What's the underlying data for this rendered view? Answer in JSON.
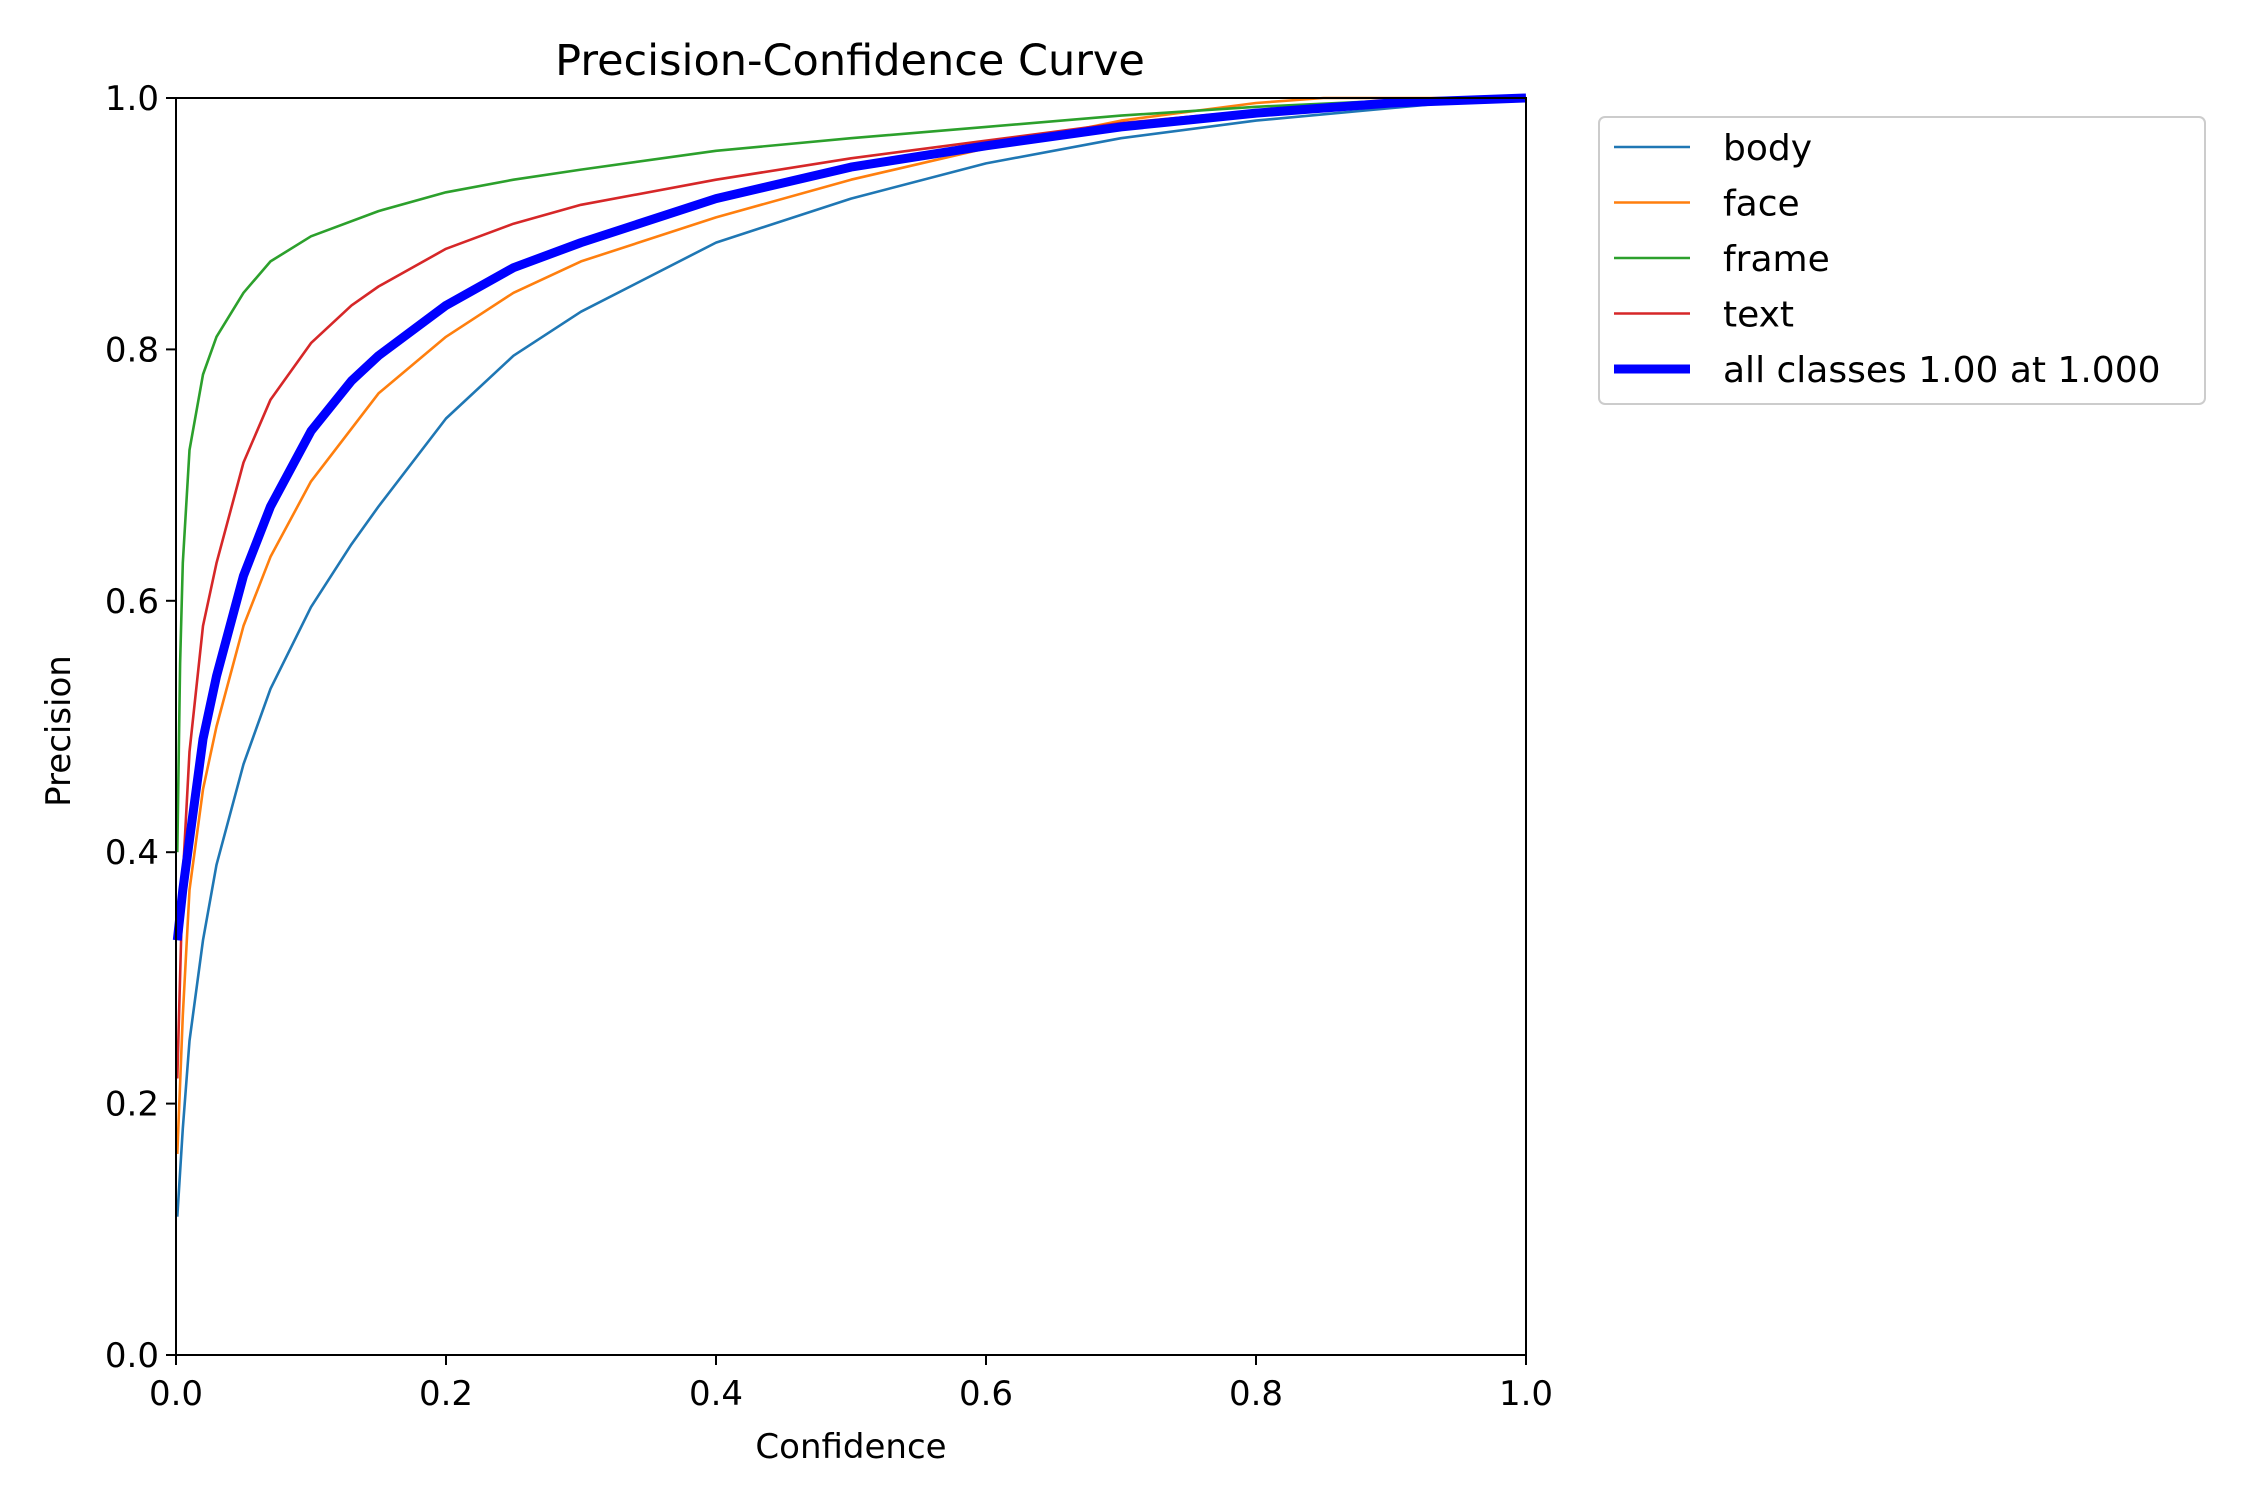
{
  "chart_data": {
    "type": "line",
    "title": "Precision-Confidence Curve",
    "xlabel": "Confidence",
    "ylabel": "Precision",
    "xlim": [
      0,
      1
    ],
    "ylim": [
      0,
      1
    ],
    "x_ticks": [
      "0.0",
      "0.2",
      "0.4",
      "0.6",
      "0.8",
      "1.0"
    ],
    "y_ticks": [
      "0.0",
      "0.2",
      "0.4",
      "0.6",
      "0.8",
      "1.0"
    ],
    "grid": false,
    "legend_position": "outside-top-right",
    "series": [
      {
        "name": "body",
        "color": "#1f77b4",
        "emphasis": false,
        "x": [
          0.001,
          0.005,
          0.01,
          0.02,
          0.03,
          0.05,
          0.07,
          0.1,
          0.13,
          0.15,
          0.2,
          0.25,
          0.3,
          0.4,
          0.5,
          0.6,
          0.7,
          0.8,
          0.9,
          0.95,
          1.0
        ],
        "y": [
          0.11,
          0.18,
          0.25,
          0.33,
          0.39,
          0.47,
          0.53,
          0.595,
          0.645,
          0.675,
          0.745,
          0.795,
          0.83,
          0.885,
          0.92,
          0.948,
          0.968,
          0.982,
          0.992,
          0.997,
          1.0
        ]
      },
      {
        "name": "face",
        "color": "#ff7f0e",
        "emphasis": false,
        "x": [
          0.001,
          0.005,
          0.01,
          0.02,
          0.03,
          0.05,
          0.07,
          0.1,
          0.15,
          0.2,
          0.25,
          0.3,
          0.4,
          0.5,
          0.6,
          0.7,
          0.8,
          0.85,
          0.9,
          1.0
        ],
        "y": [
          0.16,
          0.27,
          0.37,
          0.45,
          0.5,
          0.58,
          0.635,
          0.695,
          0.765,
          0.81,
          0.845,
          0.87,
          0.905,
          0.935,
          0.96,
          0.982,
          0.996,
          1.0,
          1.0,
          1.0
        ]
      },
      {
        "name": "frame",
        "color": "#2ca02c",
        "emphasis": false,
        "x": [
          0.001,
          0.003,
          0.005,
          0.01,
          0.02,
          0.03,
          0.05,
          0.07,
          0.1,
          0.15,
          0.2,
          0.25,
          0.3,
          0.4,
          0.5,
          0.6,
          0.7,
          0.8,
          0.9,
          1.0
        ],
        "y": [
          0.4,
          0.55,
          0.63,
          0.72,
          0.78,
          0.81,
          0.845,
          0.87,
          0.89,
          0.91,
          0.925,
          0.935,
          0.943,
          0.958,
          0.968,
          0.977,
          0.986,
          0.993,
          0.998,
          1.0
        ]
      },
      {
        "name": "text",
        "color": "#d62728",
        "emphasis": false,
        "x": [
          0.001,
          0.005,
          0.01,
          0.02,
          0.03,
          0.05,
          0.07,
          0.1,
          0.13,
          0.15,
          0.2,
          0.25,
          0.3,
          0.4,
          0.5,
          0.6,
          0.7,
          0.8,
          0.9,
          1.0
        ],
        "y": [
          0.22,
          0.38,
          0.48,
          0.58,
          0.63,
          0.71,
          0.76,
          0.805,
          0.835,
          0.85,
          0.88,
          0.9,
          0.915,
          0.935,
          0.952,
          0.966,
          0.98,
          0.99,
          0.997,
          1.0
        ]
      },
      {
        "name": "all classes 1.00 at 1.000",
        "color": "#0000ff",
        "emphasis": true,
        "x": [
          0.001,
          0.005,
          0.01,
          0.02,
          0.03,
          0.05,
          0.07,
          0.1,
          0.13,
          0.15,
          0.2,
          0.25,
          0.3,
          0.4,
          0.5,
          0.6,
          0.7,
          0.8,
          0.9,
          1.0
        ],
        "y": [
          0.33,
          0.37,
          0.41,
          0.49,
          0.54,
          0.62,
          0.675,
          0.735,
          0.775,
          0.795,
          0.835,
          0.865,
          0.885,
          0.92,
          0.945,
          0.962,
          0.977,
          0.988,
          0.996,
          1.0
        ]
      }
    ]
  }
}
